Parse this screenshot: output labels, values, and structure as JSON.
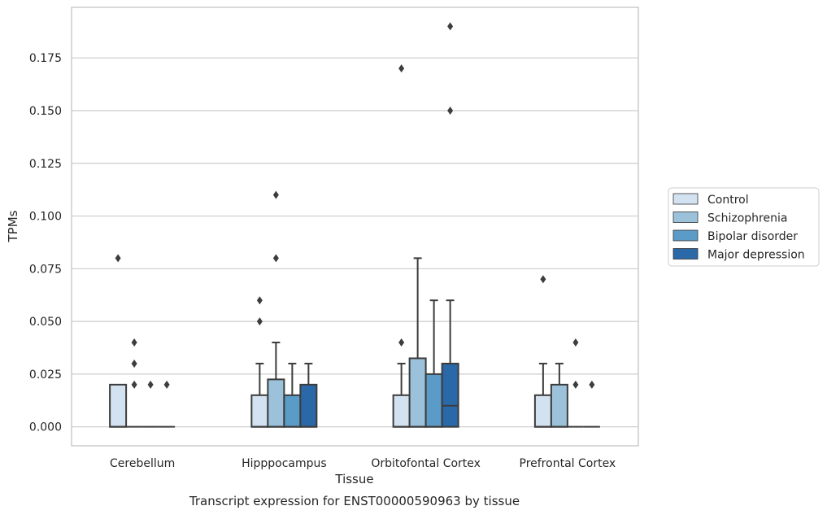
{
  "chart_data": {
    "type": "box",
    "caption": "Transcript expression for ENST00000590963 by tissue",
    "xlabel": "Tissue",
    "ylabel": "TPMs",
    "ylim": [
      -0.009,
      0.199
    ],
    "yticks": [
      0.0,
      0.025,
      0.05,
      0.075,
      0.1,
      0.125,
      0.15,
      0.175
    ],
    "ytick_labels": [
      "0.000",
      "0.025",
      "0.050",
      "0.075",
      "0.100",
      "0.125",
      "0.150",
      "0.175"
    ],
    "grid": true,
    "legend_position": "right",
    "categories": [
      "Cerebellum",
      "Hipppocampus",
      "Orbitofontal Cortex",
      "Prefrontal Cortex"
    ],
    "series": [
      {
        "name": "Control",
        "color": "#d2e2f0",
        "boxes": [
          {
            "q1": 0.0,
            "median": 0.0,
            "q3": 0.02,
            "whisker_low": 0.0,
            "whisker_high": 0.02,
            "outliers": [
              0.08
            ]
          },
          {
            "q1": 0.0,
            "median": 0.0,
            "q3": 0.015,
            "whisker_low": 0.0,
            "whisker_high": 0.03,
            "outliers": [
              0.05,
              0.06
            ]
          },
          {
            "q1": 0.0,
            "median": 0.0,
            "q3": 0.015,
            "whisker_low": 0.0,
            "whisker_high": 0.03,
            "outliers": [
              0.04,
              0.17
            ]
          },
          {
            "q1": 0.0,
            "median": 0.0,
            "q3": 0.015,
            "whisker_low": 0.0,
            "whisker_high": 0.03,
            "outliers": [
              0.07
            ]
          }
        ]
      },
      {
        "name": "Schizophrenia",
        "color": "#9cc2db",
        "boxes": [
          {
            "q1": 0.0,
            "median": 0.0,
            "q3": 0.0,
            "whisker_low": 0.0,
            "whisker_high": 0.0,
            "outliers": [
              0.02,
              0.03,
              0.04
            ]
          },
          {
            "q1": 0.0,
            "median": 0.0,
            "q3": 0.0225,
            "whisker_low": 0.0,
            "whisker_high": 0.04,
            "outliers": [
              0.08,
              0.11
            ]
          },
          {
            "q1": 0.0,
            "median": 0.0,
            "q3": 0.0325,
            "whisker_low": 0.0,
            "whisker_high": 0.08,
            "outliers": []
          },
          {
            "q1": 0.0,
            "median": 0.0,
            "q3": 0.02,
            "whisker_low": 0.0,
            "whisker_high": 0.03,
            "outliers": []
          }
        ]
      },
      {
        "name": "Bipolar disorder",
        "color": "#5b9bc7",
        "boxes": [
          {
            "q1": 0.0,
            "median": 0.0,
            "q3": 0.0,
            "whisker_low": 0.0,
            "whisker_high": 0.0,
            "outliers": [
              0.02
            ]
          },
          {
            "q1": 0.0,
            "median": 0.0,
            "q3": 0.015,
            "whisker_low": 0.0,
            "whisker_high": 0.03,
            "outliers": []
          },
          {
            "q1": 0.0,
            "median": 0.0,
            "q3": 0.025,
            "whisker_low": 0.0,
            "whisker_high": 0.06,
            "outliers": []
          },
          {
            "q1": 0.0,
            "median": 0.0,
            "q3": 0.0,
            "whisker_low": 0.0,
            "whisker_high": 0.0,
            "outliers": [
              0.02,
              0.04
            ]
          }
        ]
      },
      {
        "name": "Major depression",
        "color": "#2a68a8",
        "boxes": [
          {
            "q1": 0.0,
            "median": 0.0,
            "q3": 0.0,
            "whisker_low": 0.0,
            "whisker_high": 0.0,
            "outliers": [
              0.02
            ]
          },
          {
            "q1": 0.0,
            "median": 0.0,
            "q3": 0.02,
            "whisker_low": 0.0,
            "whisker_high": 0.03,
            "outliers": []
          },
          {
            "q1": 0.0,
            "median": 0.01,
            "q3": 0.03,
            "whisker_low": 0.0,
            "whisker_high": 0.06,
            "outliers": [
              0.15,
              0.19
            ]
          },
          {
            "q1": 0.0,
            "median": 0.0,
            "q3": 0.0,
            "whisker_low": 0.0,
            "whisker_high": 0.0,
            "outliers": [
              0.02
            ]
          }
        ]
      }
    ]
  }
}
